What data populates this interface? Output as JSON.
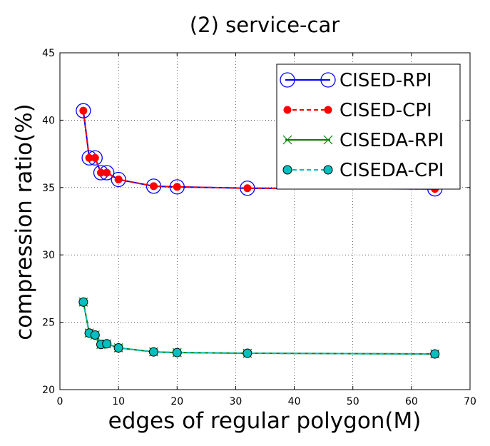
{
  "chart_data": {
    "type": "line",
    "title": "(2) service-car",
    "xlabel": "edges of regular polygon(M)",
    "ylabel": "compression ratio(%)",
    "xlim": [
      0,
      70
    ],
    "ylim": [
      20,
      45
    ],
    "xticks": [
      0,
      10,
      20,
      30,
      40,
      50,
      60,
      70
    ],
    "yticks": [
      20,
      25,
      30,
      35,
      40,
      45
    ],
    "grid": true,
    "legend_position": "top-right",
    "x": [
      4,
      5,
      6,
      7,
      8,
      10,
      16,
      20,
      32,
      64
    ],
    "series": [
      {
        "name": "CISED-RPI",
        "values": [
          40.7,
          37.2,
          37.2,
          36.1,
          36.1,
          35.6,
          35.1,
          35.05,
          34.95,
          34.9
        ],
        "color": "#0000ff",
        "linestyle": "solid",
        "marker": "open-circle"
      },
      {
        "name": "CISED-CPI",
        "values": [
          40.7,
          37.2,
          37.2,
          36.1,
          36.1,
          35.6,
          35.1,
          35.05,
          34.95,
          34.9
        ],
        "color": "#ff0000",
        "linestyle": "dashed",
        "marker": "filled-circle"
      },
      {
        "name": "CISEDA-RPI",
        "values": [
          26.5,
          24.2,
          24.05,
          23.35,
          23.4,
          23.1,
          22.8,
          22.75,
          22.7,
          22.65
        ],
        "color": "#008000",
        "linestyle": "solid",
        "marker": "x"
      },
      {
        "name": "CISEDA-CPI",
        "values": [
          26.5,
          24.2,
          24.05,
          23.35,
          23.4,
          23.1,
          22.8,
          22.75,
          22.7,
          22.65
        ],
        "color": "#00bfbf",
        "linestyle": "dashed",
        "marker": "filled-circle-black-edge"
      }
    ]
  }
}
